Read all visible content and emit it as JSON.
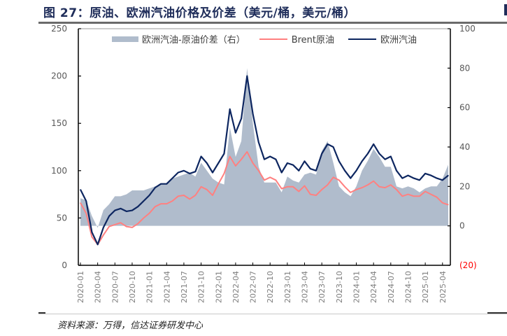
{
  "header": {
    "title": "图 27：原油、欧洲汽油价格及价差（美元/桶，美元/桶）"
  },
  "footer": {
    "source": "资料来源：万得，信达证券研发中心"
  },
  "colors": {
    "spread": "#b0bccc",
    "brent": "#ff8080",
    "gasoline": "#0d2660",
    "axis": "#000000",
    "negative_label": "#ff0000"
  },
  "chart_data": {
    "type": "line",
    "title": "原油、欧洲汽油价格及价差（美元/桶，美元/桶）",
    "legend_position": "top",
    "legend": [
      "欧洲汽油-原油价差（右）",
      "Brent原油",
      "欧洲汽油"
    ],
    "left_axis": {
      "range": [
        0,
        250
      ],
      "ticks": [
        "0",
        "50",
        "100",
        "150",
        "200",
        "250"
      ]
    },
    "right_axis": {
      "range": [
        -20,
        100
      ],
      "ticks": [
        "(20)",
        "0",
        "20",
        "40",
        "60",
        "80",
        "100"
      ]
    },
    "x_tick_labels": [
      "2020-01",
      "2020-04",
      "2020-07",
      "2020-10",
      "2021-01",
      "2021-04",
      "2021-07",
      "2021-10",
      "2022-01",
      "2022-04",
      "2022-07",
      "2022-10",
      "2023-01",
      "2023-04",
      "2023-07",
      "2023-10",
      "2024-01",
      "2024-04",
      "2024-07",
      "2024-10",
      "2025-01",
      "2025-04"
    ],
    "x": [
      "2020-01",
      "2020-02",
      "2020-03",
      "2020-04",
      "2020-05",
      "2020-06",
      "2020-07",
      "2020-08",
      "2020-09",
      "2020-10",
      "2020-11",
      "2020-12",
      "2021-01",
      "2021-02",
      "2021-03",
      "2021-04",
      "2021-05",
      "2021-06",
      "2021-07",
      "2021-08",
      "2021-09",
      "2021-10",
      "2021-11",
      "2021-12",
      "2022-01",
      "2022-02",
      "2022-03",
      "2022-04",
      "2022-05",
      "2022-06",
      "2022-07",
      "2022-08",
      "2022-09",
      "2022-10",
      "2022-11",
      "2022-12",
      "2023-01",
      "2023-02",
      "2023-03",
      "2023-04",
      "2023-05",
      "2023-06",
      "2023-07",
      "2023-08",
      "2023-09",
      "2023-10",
      "2023-11",
      "2023-12",
      "2024-01",
      "2024-02",
      "2024-03",
      "2024-04",
      "2024-05",
      "2024-06",
      "2024-07",
      "2024-08",
      "2024-09",
      "2024-10",
      "2024-11",
      "2024-12",
      "2025-01",
      "2025-02",
      "2025-03",
      "2025-04",
      "2025-05"
    ],
    "series": [
      {
        "name": "欧洲汽油-原油价差（右）",
        "axis": "right",
        "style": "area",
        "values": [
          14,
          13,
          5,
          -1,
          8,
          11,
          15,
          15,
          16,
          18,
          18,
          18,
          19,
          20,
          21,
          21,
          24,
          25,
          26,
          27,
          25,
          32,
          28,
          24,
          22,
          21,
          50,
          35,
          43,
          80,
          52,
          30,
          22,
          22,
          22,
          17,
          25,
          23,
          22,
          26,
          27,
          26,
          38,
          43,
          32,
          20,
          17,
          15,
          20,
          28,
          33,
          39,
          35,
          30,
          30,
          20,
          19,
          20,
          19,
          17,
          19,
          20,
          20,
          24,
          31
        ]
      },
      {
        "name": "Brent原油",
        "axis": "left",
        "style": "line",
        "values": [
          66,
          55,
          30,
          22,
          32,
          41,
          43,
          45,
          41,
          40,
          44,
          50,
          55,
          62,
          65,
          65,
          68,
          73,
          74,
          70,
          74,
          83,
          80,
          74,
          86,
          97,
          115,
          105,
          112,
          120,
          108,
          100,
          90,
          93,
          90,
          81,
          83,
          83,
          78,
          84,
          75,
          74,
          80,
          85,
          93,
          90,
          83,
          77,
          80,
          82,
          85,
          89,
          83,
          82,
          85,
          80,
          73,
          75,
          73,
          73,
          78,
          75,
          72,
          66,
          64
        ]
      },
      {
        "name": "欧洲汽油",
        "axis": "left",
        "style": "line",
        "values": [
          80,
          68,
          35,
          22,
          40,
          52,
          58,
          60,
          57,
          58,
          62,
          68,
          74,
          82,
          86,
          86,
          92,
          98,
          100,
          97,
          99,
          115,
          108,
          98,
          108,
          118,
          165,
          140,
          155,
          200,
          160,
          130,
          112,
          115,
          112,
          98,
          108,
          106,
          100,
          110,
          102,
          100,
          118,
          128,
          125,
          110,
          100,
          92,
          100,
          110,
          118,
          128,
          118,
          112,
          115,
          100,
          92,
          95,
          92,
          90,
          97,
          95,
          92,
          90,
          95
        ]
      }
    ]
  }
}
